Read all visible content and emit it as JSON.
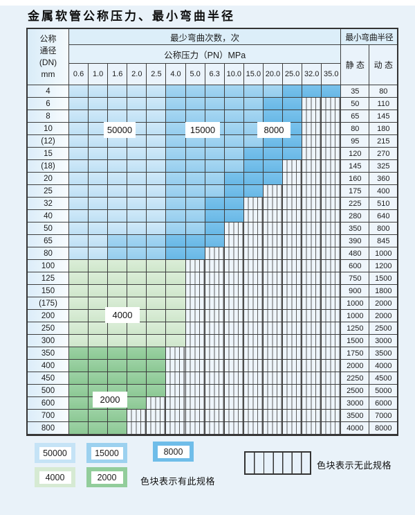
{
  "title": "金属软管公称压力、最小弯曲半径",
  "table": {
    "dn_header": {
      "line1": "公称",
      "line2": "通径",
      "line3": "(DN)",
      "line4": "mm"
    },
    "min_bend_cycles_header": "最少弯曲次数，次",
    "pressure_header": "公称压力（PN）MPa",
    "min_bend_radius_header": "最小弯曲半径",
    "static_label": "静 态",
    "dynamic_label": "动 态",
    "pressure_columns": [
      "0.6",
      "1.0",
      "1.6",
      "2.0",
      "2.5",
      "4.0",
      "5.0",
      "6.3",
      "10.0",
      "15.0",
      "20.0",
      "25.0",
      "32.0",
      "35.0"
    ],
    "rows": [
      {
        "dn": "4",
        "cells": [
          "50000",
          "50000",
          "50000",
          "50000",
          "50000",
          "15000",
          "15000",
          "15000",
          "15000",
          "15000",
          "15000",
          "8000",
          "8000",
          "8000"
        ],
        "static": "35",
        "dynamic": "80"
      },
      {
        "dn": "6",
        "cells": [
          "50000",
          "50000",
          "50000",
          "50000",
          "50000",
          "15000",
          "15000",
          "15000",
          "15000",
          "15000",
          "8000",
          "8000",
          "none",
          "none"
        ],
        "static": "50",
        "dynamic": "110"
      },
      {
        "dn": "8",
        "cells": [
          "50000",
          "50000",
          "50000",
          "50000",
          "50000",
          "15000",
          "15000",
          "15000",
          "15000",
          "15000",
          "8000",
          "8000",
          "none",
          "none"
        ],
        "static": "65",
        "dynamic": "145"
      },
      {
        "dn": "10",
        "cells": [
          "50000",
          "50000",
          "50000",
          "50000",
          "50000",
          "15000",
          "15000",
          "15000",
          "15000",
          "15000",
          "8000",
          "8000",
          "none",
          "none"
        ],
        "static": "80",
        "dynamic": "180"
      },
      {
        "dn": "(12)",
        "cells": [
          "50000",
          "50000",
          "50000",
          "50000",
          "50000",
          "15000",
          "15000",
          "15000",
          "15000",
          "15000",
          "8000",
          "8000",
          "none",
          "none"
        ],
        "static": "95",
        "dynamic": "215"
      },
      {
        "dn": "15",
        "cells": [
          "50000",
          "50000",
          "50000",
          "50000",
          "50000",
          "15000",
          "15000",
          "15000",
          "15000",
          "8000",
          "8000",
          "8000",
          "none",
          "none"
        ],
        "static": "120",
        "dynamic": "270"
      },
      {
        "dn": "(18)",
        "cells": [
          "50000",
          "50000",
          "50000",
          "50000",
          "50000",
          "15000",
          "15000",
          "15000",
          "15000",
          "8000",
          "8000",
          "none",
          "none",
          "none"
        ],
        "static": "145",
        "dynamic": "325"
      },
      {
        "dn": "20",
        "cells": [
          "50000",
          "50000",
          "50000",
          "50000",
          "50000",
          "15000",
          "15000",
          "15000",
          "8000",
          "8000",
          "8000",
          "none",
          "none",
          "none"
        ],
        "static": "160",
        "dynamic": "360"
      },
      {
        "dn": "25",
        "cells": [
          "50000",
          "50000",
          "50000",
          "50000",
          "50000",
          "15000",
          "15000",
          "15000",
          "8000",
          "8000",
          "none",
          "none",
          "none",
          "none"
        ],
        "static": "175",
        "dynamic": "400"
      },
      {
        "dn": "32",
        "cells": [
          "50000",
          "50000",
          "50000",
          "50000",
          "50000",
          "15000",
          "15000",
          "8000",
          "8000",
          "none",
          "none",
          "none",
          "none",
          "none"
        ],
        "static": "225",
        "dynamic": "510"
      },
      {
        "dn": "40",
        "cells": [
          "50000",
          "50000",
          "50000",
          "50000",
          "50000",
          "15000",
          "15000",
          "8000",
          "8000",
          "none",
          "none",
          "none",
          "none",
          "none"
        ],
        "static": "280",
        "dynamic": "640"
      },
      {
        "dn": "50",
        "cells": [
          "50000",
          "50000",
          "50000",
          "50000",
          "50000",
          "15000",
          "15000",
          "8000",
          "none",
          "none",
          "none",
          "none",
          "none",
          "none"
        ],
        "static": "350",
        "dynamic": "800"
      },
      {
        "dn": "65",
        "cells": [
          "50000",
          "50000",
          "15000",
          "15000",
          "15000",
          "8000",
          "8000",
          "8000",
          "none",
          "none",
          "none",
          "none",
          "none",
          "none"
        ],
        "static": "390",
        "dynamic": "845"
      },
      {
        "dn": "80",
        "cells": [
          "50000",
          "50000",
          "15000",
          "15000",
          "15000",
          "8000",
          "8000",
          "none",
          "none",
          "none",
          "none",
          "none",
          "none",
          "none"
        ],
        "static": "480",
        "dynamic": "1000"
      },
      {
        "dn": "100",
        "cells": [
          "4000",
          "4000",
          "4000",
          "4000",
          "4000",
          "4000",
          "none",
          "none",
          "none",
          "none",
          "none",
          "none",
          "none",
          "none"
        ],
        "static": "600",
        "dynamic": "1200"
      },
      {
        "dn": "125",
        "cells": [
          "4000",
          "4000",
          "4000",
          "4000",
          "4000",
          "4000",
          "none",
          "none",
          "none",
          "none",
          "none",
          "none",
          "none",
          "none"
        ],
        "static": "750",
        "dynamic": "1500"
      },
      {
        "dn": "150",
        "cells": [
          "4000",
          "4000",
          "4000",
          "4000",
          "4000",
          "4000",
          "none",
          "none",
          "none",
          "none",
          "none",
          "none",
          "none",
          "none"
        ],
        "static": "900",
        "dynamic": "1800"
      },
      {
        "dn": "(175)",
        "cells": [
          "4000",
          "4000",
          "4000",
          "4000",
          "4000",
          "4000",
          "none",
          "none",
          "none",
          "none",
          "none",
          "none",
          "none",
          "none"
        ],
        "static": "1000",
        "dynamic": "2000"
      },
      {
        "dn": "200",
        "cells": [
          "4000",
          "4000",
          "4000",
          "4000",
          "4000",
          "4000",
          "none",
          "none",
          "none",
          "none",
          "none",
          "none",
          "none",
          "none"
        ],
        "static": "1000",
        "dynamic": "2000"
      },
      {
        "dn": "250",
        "cells": [
          "4000",
          "4000",
          "4000",
          "4000",
          "4000",
          "4000",
          "none",
          "none",
          "none",
          "none",
          "none",
          "none",
          "none",
          "none"
        ],
        "static": "1250",
        "dynamic": "2500"
      },
      {
        "dn": "300",
        "cells": [
          "4000",
          "4000",
          "4000",
          "4000",
          "4000",
          "4000",
          "none",
          "none",
          "none",
          "none",
          "none",
          "none",
          "none",
          "none"
        ],
        "static": "1500",
        "dynamic": "3000"
      },
      {
        "dn": "350",
        "cells": [
          "2000",
          "2000",
          "2000",
          "2000",
          "2000",
          "none",
          "none",
          "none",
          "none",
          "none",
          "none",
          "none",
          "none",
          "none"
        ],
        "static": "1750",
        "dynamic": "3500"
      },
      {
        "dn": "400",
        "cells": [
          "2000",
          "2000",
          "2000",
          "2000",
          "2000",
          "none",
          "none",
          "none",
          "none",
          "none",
          "none",
          "none",
          "none",
          "none"
        ],
        "static": "2000",
        "dynamic": "4000"
      },
      {
        "dn": "450",
        "cells": [
          "2000",
          "2000",
          "2000",
          "2000",
          "2000",
          "none",
          "none",
          "none",
          "none",
          "none",
          "none",
          "none",
          "none",
          "none"
        ],
        "static": "2250",
        "dynamic": "4500"
      },
      {
        "dn": "500",
        "cells": [
          "2000",
          "2000",
          "2000",
          "2000",
          "2000",
          "none",
          "none",
          "none",
          "none",
          "none",
          "none",
          "none",
          "none",
          "none"
        ],
        "static": "2500",
        "dynamic": "5000"
      },
      {
        "dn": "600",
        "cells": [
          "2000",
          "2000",
          "2000",
          "2000",
          "none",
          "none",
          "none",
          "none",
          "none",
          "none",
          "none",
          "none",
          "none",
          "none"
        ],
        "static": "3000",
        "dynamic": "6000"
      },
      {
        "dn": "700",
        "cells": [
          "2000",
          "2000",
          "2000",
          "none",
          "none",
          "none",
          "none",
          "none",
          "none",
          "none",
          "none",
          "none",
          "none",
          "none"
        ],
        "static": "3500",
        "dynamic": "7000"
      },
      {
        "dn": "800",
        "cells": [
          "2000",
          "2000",
          "2000",
          "none",
          "none",
          "none",
          "none",
          "none",
          "none",
          "none",
          "none",
          "none",
          "none",
          "none"
        ],
        "static": "4000",
        "dynamic": "8000"
      }
    ]
  },
  "overlay_labels": {
    "b50000": "50000",
    "b15000": "15000",
    "b8000": "8000",
    "g4000": "4000",
    "g2000": "2000"
  },
  "legend": {
    "items": [
      {
        "value": "50000",
        "color": "#c5e3f6"
      },
      {
        "value": "15000",
        "color": "#9cd1ef"
      },
      {
        "value": "8000",
        "color": "#6fbde9"
      },
      {
        "value": "4000",
        "color": "#d6ead3"
      },
      {
        "value": "2000",
        "color": "#92cd9b"
      }
    ],
    "has_spec_text": "色块表示有此规格",
    "no_spec_text": "色块表示无此规格"
  },
  "colors": {
    "band_50000": "#c5e3f6",
    "band_15000": "#9cd1ef",
    "band_8000": "#6fbde9",
    "band_4000": "#d6ead3",
    "band_2000": "#92cd9b",
    "no_spec_bg": "#eef5fb",
    "page_bg": "#e9f2f9"
  }
}
